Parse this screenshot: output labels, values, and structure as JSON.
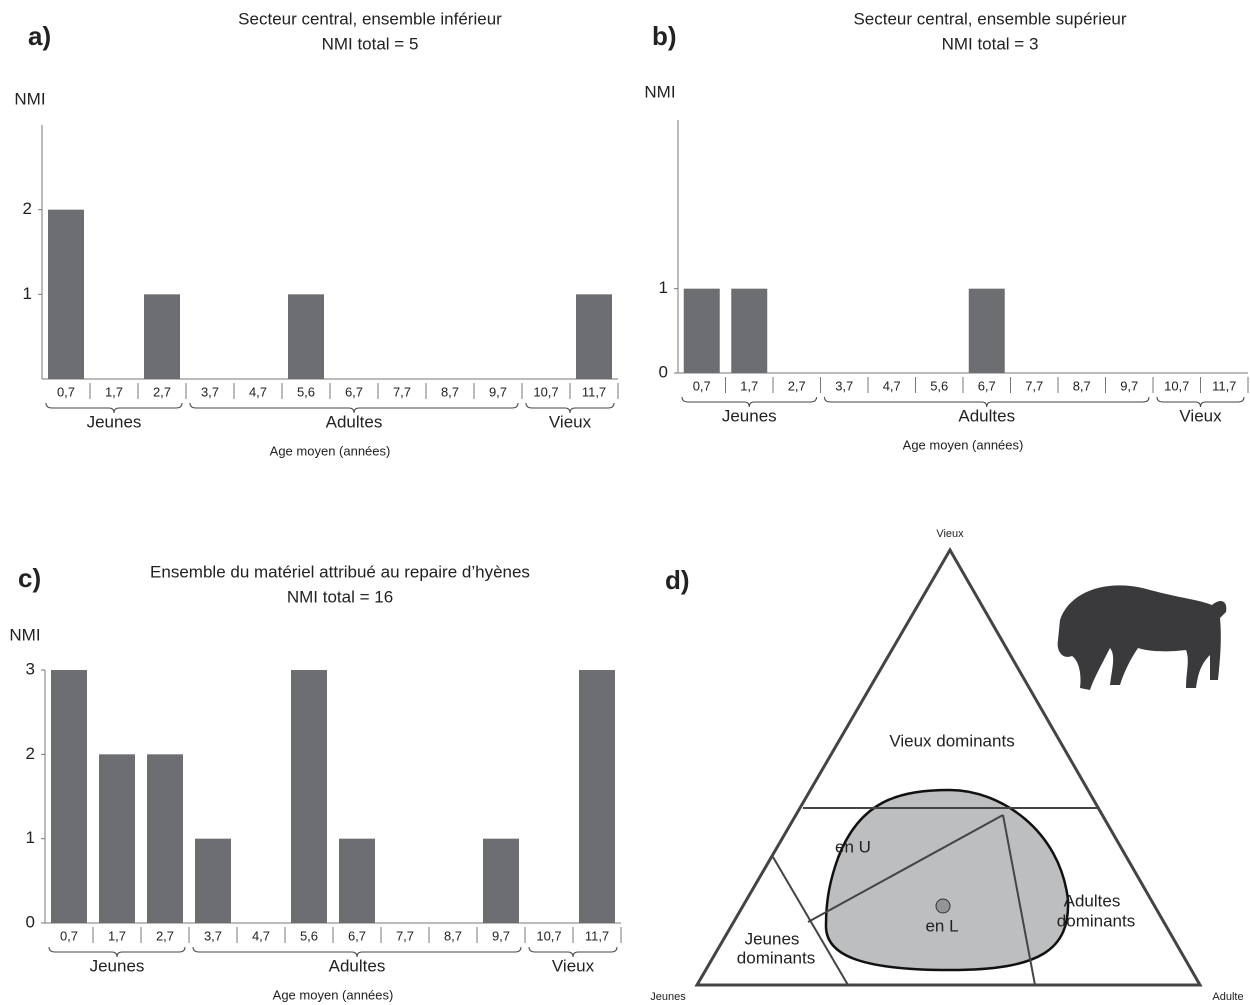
{
  "chart_data": [
    {
      "type": "bar",
      "panel_label": "a)",
      "title": "Secteur central, ensemble inférieur",
      "subtitle": "NMI total = 5",
      "y_label": "NMI",
      "x_label": "Age moyen (années)",
      "color": "#6d6e71",
      "categories": [
        "0,7",
        "1,7",
        "2,7",
        "3,7",
        "4,7",
        "5,6",
        "6,7",
        "7,7",
        "8,7",
        "9,7",
        "10,7",
        "11,7"
      ],
      "values": [
        2,
        0,
        1,
        0,
        0,
        1,
        0,
        0,
        0,
        0,
        0,
        1
      ],
      "groups": [
        {
          "label": "Jeunes",
          "span": 3
        },
        {
          "label": "Adultes",
          "span": 7
        },
        {
          "label": "Vieux",
          "span": 2
        }
      ],
      "ylim": [
        0,
        3
      ],
      "yticks": [
        1,
        2
      ]
    },
    {
      "type": "bar",
      "panel_label": "b)",
      "title": "Secteur central, ensemble supérieur",
      "subtitle": "NMI total = 3",
      "y_label": "NMI",
      "x_label": "Age moyen (années)",
      "color": "#6d6e71",
      "categories": [
        "0,7",
        "1,7",
        "2,7",
        "3,7",
        "4,7",
        "5,6",
        "6,7",
        "7,7",
        "8,7",
        "9,7",
        "10,7",
        "11,7"
      ],
      "values": [
        1,
        1,
        0,
        0,
        0,
        0,
        1,
        0,
        0,
        0,
        0,
        0
      ],
      "groups": [
        {
          "label": "Jeunes",
          "span": 3
        },
        {
          "label": "Adultes",
          "span": 7
        },
        {
          "label": "Vieux",
          "span": 2
        }
      ],
      "ylim": [
        0,
        3
      ],
      "yticks": [
        0,
        1
      ]
    },
    {
      "type": "bar",
      "panel_label": "c)",
      "title": "Ensemble du matériel attribué au repaire d’hyènes",
      "subtitle": "NMI total = 16",
      "y_label": "NMI",
      "x_label": "Age moyen (années)",
      "color": "#6d6e71",
      "categories": [
        "0,7",
        "1,7",
        "2,7",
        "3,7",
        "4,7",
        "5,6",
        "6,7",
        "7,7",
        "8,7",
        "9,7",
        "10,7",
        "11,7"
      ],
      "values": [
        3,
        2,
        2,
        1,
        0,
        3,
        1,
        0,
        0,
        1,
        0,
        3
      ],
      "groups": [
        {
          "label": "Jeunes",
          "span": 3
        },
        {
          "label": "Adultes",
          "span": 7
        },
        {
          "label": "Vieux",
          "span": 2
        }
      ],
      "ylim": [
        0,
        3
      ],
      "yticks": [
        0,
        1,
        2,
        3
      ]
    }
  ],
  "diagram": {
    "panel_label": "d)",
    "top": "Vieux",
    "left": "Jeunes",
    "right": "Adulte",
    "zone_old": "Vieux dominants",
    "zone_u": "en U",
    "zone_l": "en L",
    "zone_adult": [
      "Adultes",
      "dominants"
    ],
    "zone_young": [
      "Jeunes",
      "dominants"
    ]
  }
}
